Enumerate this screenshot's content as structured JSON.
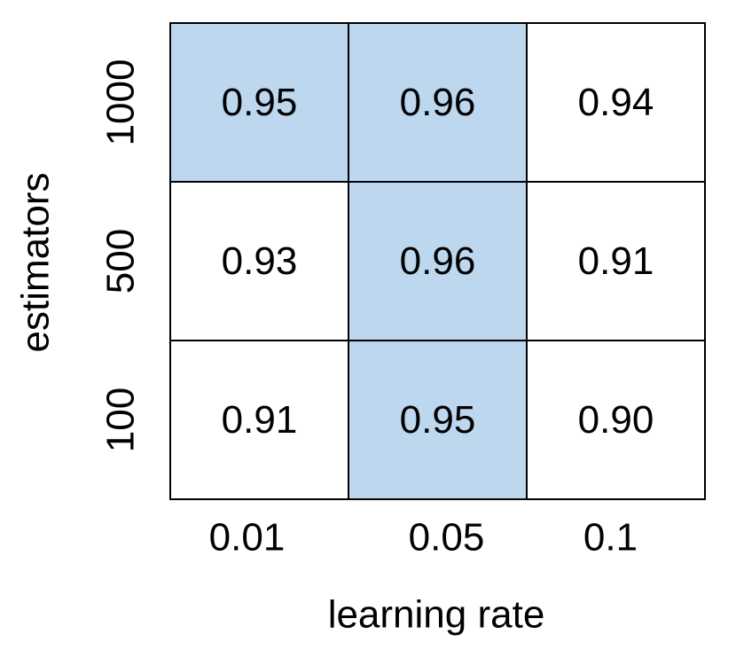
{
  "chart_data": {
    "type": "heatmap",
    "xlabel": "learning rate",
    "ylabel": "estimators",
    "x_categories": [
      "0.01",
      "0.05",
      "0.1"
    ],
    "y_categories": [
      "1000",
      "500",
      "100"
    ],
    "values": [
      [
        "0.95",
        "0.96",
        "0.94"
      ],
      [
        "0.93",
        "0.96",
        "0.91"
      ],
      [
        "0.91",
        "0.95",
        "0.90"
      ]
    ],
    "highlighted": [
      [
        true,
        true,
        false
      ],
      [
        false,
        true,
        false
      ],
      [
        false,
        true,
        false
      ]
    ],
    "colors": {
      "highlight": "#bdd7ee",
      "background": "#ffffff",
      "grid": "#000000"
    }
  }
}
